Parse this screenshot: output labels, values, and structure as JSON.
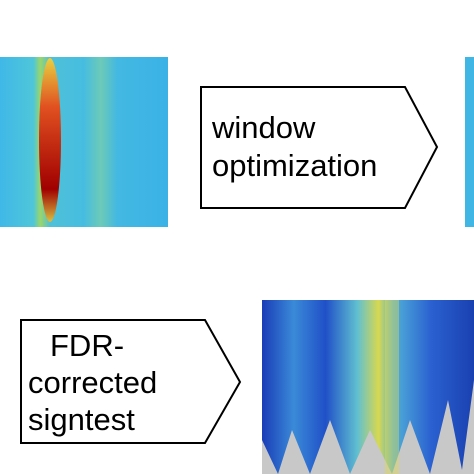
{
  "boxes": [
    {
      "lines": [
        "window",
        "optimization"
      ]
    },
    {
      "lines": [
        "FDR-",
        "corrected",
        "signtest"
      ]
    }
  ]
}
